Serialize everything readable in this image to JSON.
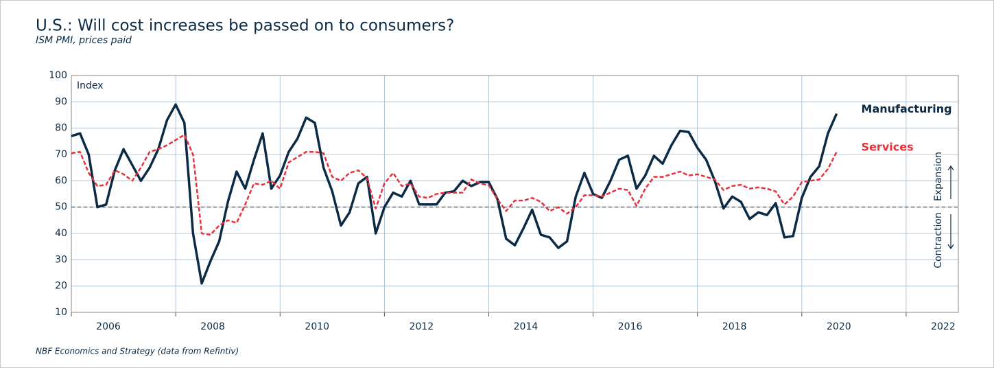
{
  "chart_data": {
    "type": "line",
    "title": "U.S.: Will cost increases be passed on to consumers?",
    "subtitle": "ISM PMI, prices paid",
    "y_axis_label": "Index",
    "source": "NBF Economics and Strategy (data from Refintiv)",
    "expansion_label": "Expansion",
    "contraction_label": "Contraction",
    "reference_line": 50,
    "xlim": [
      2006,
      2023
    ],
    "xticks": [
      2006,
      2008,
      2010,
      2012,
      2014,
      2016,
      2018,
      2020,
      2022
    ],
    "ylim": [
      10,
      100
    ],
    "yticks": [
      10,
      20,
      30,
      40,
      50,
      60,
      70,
      80,
      90,
      100
    ],
    "grid": true,
    "x": [
      2006,
      2006.167,
      2006.333,
      2006.5,
      2006.667,
      2006.833,
      2007,
      2007.167,
      2007.333,
      2007.5,
      2007.667,
      2007.833,
      2008,
      2008.167,
      2008.333,
      2008.5,
      2008.667,
      2008.833,
      2009,
      2009.167,
      2009.333,
      2009.5,
      2009.667,
      2009.833,
      2010,
      2010.167,
      2010.333,
      2010.5,
      2010.667,
      2010.833,
      2011,
      2011.167,
      2011.333,
      2011.5,
      2011.667,
      2011.833,
      2012,
      2012.167,
      2012.333,
      2012.5,
      2012.667,
      2012.833,
      2013,
      2013.167,
      2013.333,
      2013.5,
      2013.667,
      2013.833,
      2014,
      2014.167,
      2014.333,
      2014.5,
      2014.667,
      2014.833,
      2015,
      2015.167,
      2015.333,
      2015.5,
      2015.667,
      2015.833,
      2016,
      2016.167,
      2016.333,
      2016.5,
      2016.667,
      2016.833,
      2017,
      2017.167,
      2017.333,
      2017.5,
      2017.667,
      2017.833,
      2018,
      2018.167,
      2018.333,
      2018.5,
      2018.667,
      2018.833,
      2019,
      2019.167,
      2019.333,
      2019.5,
      2019.667,
      2019.833,
      2020,
      2020.167,
      2020.333,
      2020.5,
      2020.667
    ],
    "series": [
      {
        "name": "Manufacturing",
        "color": "#0b2a45",
        "dashed": false,
        "values": [
          77,
          78,
          70,
          50,
          51,
          64,
          72,
          66,
          60,
          65,
          72,
          83,
          89,
          82,
          40,
          21,
          29.5,
          37,
          52,
          63.5,
          57,
          68,
          78,
          57,
          62,
          71,
          76,
          84,
          82,
          65,
          56,
          43,
          48,
          59,
          61.5,
          40,
          50,
          55.5,
          54,
          60,
          51,
          51,
          51,
          55.5,
          56,
          60,
          58,
          59.5,
          59.5,
          53,
          38,
          35.5,
          42,
          49,
          39.5,
          38.5,
          34.5,
          37,
          54,
          63,
          55,
          53.5,
          60,
          68,
          69.5,
          57,
          62,
          69.5,
          66.5,
          73.5,
          79,
          78.5,
          72.5,
          68,
          60,
          49.5,
          54,
          52,
          45.5,
          48,
          47,
          51.5,
          38.5,
          39,
          53.5,
          61.5,
          65.5,
          78,
          85.5
        ]
      },
      {
        "name": "Services",
        "color": "#e8303a",
        "dashed": true,
        "values": [
          70.5,
          71,
          63,
          58,
          58.5,
          64,
          62.5,
          60,
          65,
          71,
          72,
          73.5,
          75.5,
          77.5,
          70,
          40,
          39.5,
          43,
          45,
          44,
          51,
          59,
          58.5,
          60,
          57,
          67,
          69,
          71,
          71,
          70.5,
          61.5,
          60,
          63,
          64,
          61,
          49.5,
          59,
          63,
          58,
          59,
          54,
          53.5,
          55,
          55.5,
          55.5,
          55.5,
          60.5,
          59,
          58.3,
          53,
          48.5,
          52.5,
          52.5,
          53.5,
          52,
          48.5,
          50,
          47.5,
          50,
          54.5,
          54.5,
          54,
          55.5,
          57,
          56.5,
          50.5,
          57,
          61.5,
          61.5,
          62.5,
          63.5,
          62,
          62.5,
          61.5,
          60.5,
          56.5,
          58,
          58.5,
          57,
          57.5,
          57,
          56,
          51,
          54,
          59.5,
          60,
          60.5,
          64.5,
          71
        ]
      }
    ]
  }
}
